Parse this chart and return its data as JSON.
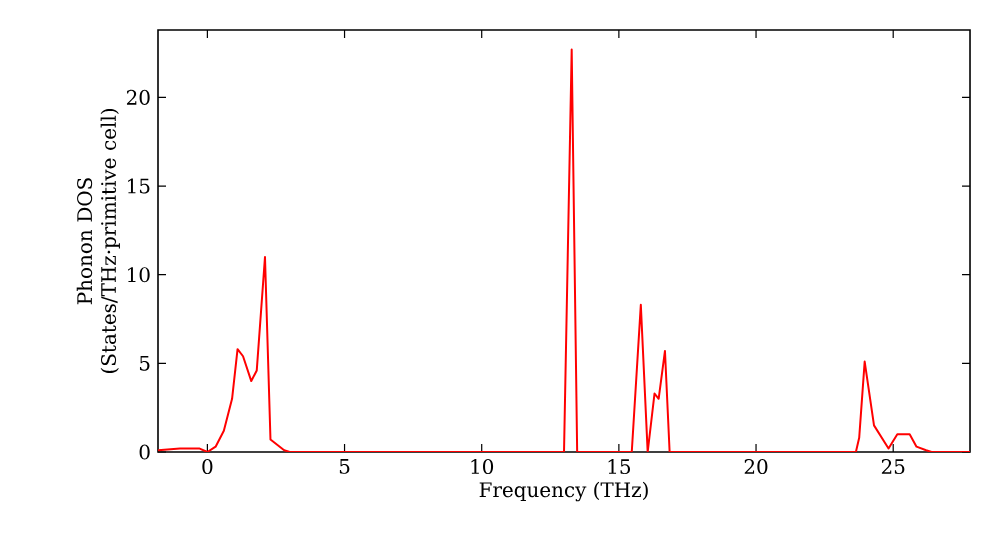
{
  "chart_data": {
    "type": "line",
    "xlabel": "Frequency (THz)",
    "ylabel": "Phonon DOS (States/THz·primitive cell)",
    "series": [
      {
        "color": "#ff0000",
        "x": [
          -1.8,
          -1.0,
          -0.3,
          0.0,
          0.3,
          0.6,
          0.9,
          1.1,
          1.3,
          1.6,
          1.8,
          2.1,
          2.3,
          2.8,
          3.0,
          12.9,
          13.0,
          13.28,
          13.48,
          15.47,
          15.8,
          16.05,
          16.3,
          16.45,
          16.68,
          16.85,
          23.64,
          23.76,
          23.96,
          24.3,
          24.83,
          25.15,
          25.6,
          25.85,
          26.2,
          26.4,
          27.8
        ],
        "values": [
          0.1,
          0.2,
          0.2,
          0,
          0.3,
          1.2,
          3.0,
          5.8,
          5.4,
          4.0,
          4.6,
          11.0,
          0.7,
          0.1,
          0,
          0,
          0,
          22.7,
          0,
          0,
          8.3,
          0,
          3.3,
          3.0,
          5.7,
          0,
          0,
          0.8,
          5.1,
          1.5,
          0.2,
          1.0,
          1.0,
          0.3,
          0.1,
          0,
          0
        ]
      }
    ],
    "xlim": [
      -1.8,
      27.8
    ],
    "ylim": [
      0,
      23.8
    ],
    "xticks": [
      0,
      5,
      10,
      15,
      20,
      25
    ],
    "yticks": [
      0,
      5,
      10,
      15,
      20
    ],
    "grid": false,
    "marker": "none",
    "line_style": "solid"
  }
}
